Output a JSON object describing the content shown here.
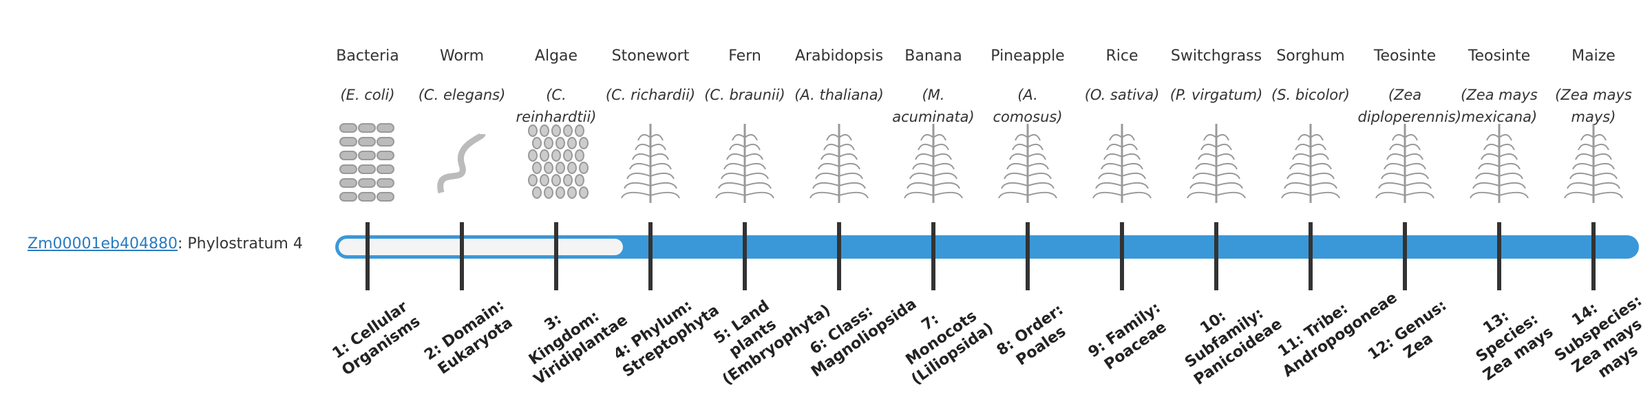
{
  "gene": {
    "id": "Zm00001eb404880",
    "separator": ":",
    "stratum_label": "Phylostratum",
    "stratum": 4
  },
  "organisms": [
    {
      "name": "Bacteria",
      "scientific": "(E. coli)"
    },
    {
      "name": "Worm",
      "scientific": "(C. elegans)"
    },
    {
      "name": "Algae",
      "scientific": "(C. reinhardtii)"
    },
    {
      "name": "Stonewort",
      "scientific": "(C. richardii)"
    },
    {
      "name": "Fern",
      "scientific": "(C. braunii)"
    },
    {
      "name": "Arabidopsis",
      "scientific": "(A. thaliana)"
    },
    {
      "name": "Banana",
      "scientific": "(M. acuminata)"
    },
    {
      "name": "Pineapple",
      "scientific": "(A. comosus)"
    },
    {
      "name": "Rice",
      "scientific": "(O. sativa)"
    },
    {
      "name": "Switchgrass",
      "scientific": "(P. virgatum)"
    },
    {
      "name": "Sorghum",
      "scientific": "(S. bicolor)"
    },
    {
      "name": "Teosinte",
      "scientific": "(Zea diploperennis)"
    },
    {
      "name": "Teosinte",
      "scientific": "(Zea mays mexicana)"
    },
    {
      "name": "Maize",
      "scientific": "(Zea mays mays)"
    }
  ],
  "strata": [
    "1: Cellular Organisms",
    "2: Domain: Eukaryota",
    "3: Kingdom: Viridiplantae",
    "4: Phylum: Streptophyta",
    "5: Land plants (Embryophyta)",
    "6: Class: Magnoliopsida",
    "7: Monocots (Liliopsida)",
    "8: Order: Poales",
    "9: Family: Poaceae",
    "10: Subfamily: Panicoideae",
    "11: Tribe: Andropogoneae",
    "12: Genus: Zea",
    "13: Species: Zea mays",
    "14: Subspecies: Zea mays mays"
  ]
}
